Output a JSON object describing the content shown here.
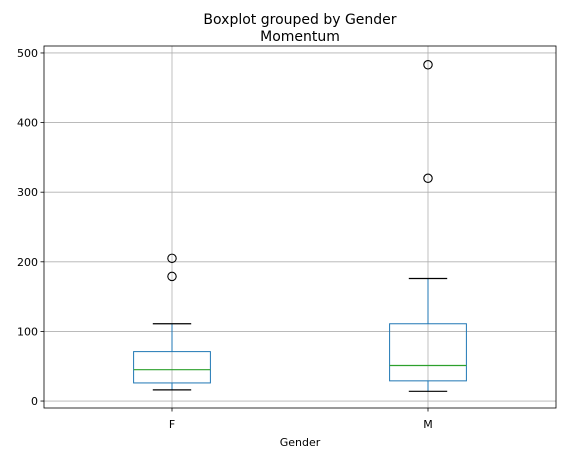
{
  "chart_data": {
    "type": "boxplot",
    "suptitle": "Boxplot grouped by Gender",
    "title": "Momentum",
    "xlabel": "Gender",
    "ylabel": "",
    "ylim": [
      -10,
      510
    ],
    "yticks": [
      0,
      100,
      200,
      300,
      400,
      500
    ],
    "grid": true,
    "legend": "none",
    "categories": [
      "F",
      "M"
    ],
    "boxes": [
      {
        "category": "F",
        "whisker_low": 16,
        "q1": 26,
        "median": 45,
        "q3": 71,
        "whisker_high": 111,
        "outliers": [
          179,
          205
        ]
      },
      {
        "category": "M",
        "whisker_low": 14,
        "q1": 29,
        "median": 51,
        "q3": 111,
        "whisker_high": 176,
        "outliers": [
          320,
          483
        ]
      }
    ],
    "colors": {
      "box": "#1f77b4",
      "median": "#2ca02c",
      "whisker": "#000000",
      "grid": "#b0b0b0",
      "axes": "#000000"
    }
  }
}
